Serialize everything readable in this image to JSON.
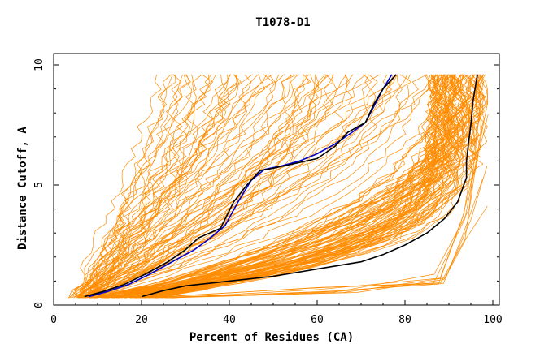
{
  "chart_data": {
    "type": "line",
    "title": "T1078-D1",
    "xlabel": "Percent of Residues (CA)",
    "ylabel": "Distance Cutoff, A",
    "xlim": [
      0,
      100
    ],
    "ylim": [
      0,
      10
    ],
    "x_ticks": [
      "0",
      "20",
      "40",
      "60",
      "80",
      "100"
    ],
    "y_ticks": [
      "0",
      "5",
      "10"
    ],
    "grid": false,
    "colors": {
      "models": "#ff8c00",
      "black": "#000000",
      "blue": "#0000cd",
      "axes": "#000000"
    },
    "series": [
      {
        "color": "#0000cd",
        "x": [
          8,
          12,
          17,
          22,
          27,
          32,
          35,
          39,
          42,
          45,
          48,
          52,
          56,
          60,
          64,
          68,
          71,
          73,
          75,
          77
        ],
        "y": [
          0.35,
          0.55,
          0.85,
          1.3,
          1.8,
          2.3,
          2.7,
          3.3,
          4.3,
          5.2,
          5.65,
          5.8,
          6.0,
          6.3,
          6.7,
          7.2,
          7.6,
          8.3,
          9.0,
          9.6
        ]
      },
      {
        "color": "#000000",
        "x": [
          7,
          11,
          16,
          21,
          26,
          30,
          33,
          38,
          41,
          44,
          47,
          50,
          55,
          60,
          64,
          67,
          71,
          73,
          75,
          78
        ],
        "y": [
          0.35,
          0.55,
          0.85,
          1.3,
          1.8,
          2.3,
          2.8,
          3.2,
          4.3,
          5.0,
          5.6,
          5.7,
          5.9,
          6.1,
          6.6,
          7.2,
          7.6,
          8.4,
          9.0,
          9.6
        ]
      },
      {
        "color": "#000000",
        "x": [
          20,
          25,
          30,
          35,
          40,
          50,
          60,
          70,
          75,
          80,
          85,
          89,
          92,
          93,
          94,
          94,
          94.5,
          95,
          95.5,
          96.5
        ],
        "y": [
          0.35,
          0.6,
          0.8,
          0.9,
          1.0,
          1.2,
          1.5,
          1.8,
          2.1,
          2.5,
          3.0,
          3.6,
          4.3,
          4.8,
          5.3,
          6.0,
          6.8,
          7.5,
          8.5,
          9.6
        ]
      }
    ]
  }
}
